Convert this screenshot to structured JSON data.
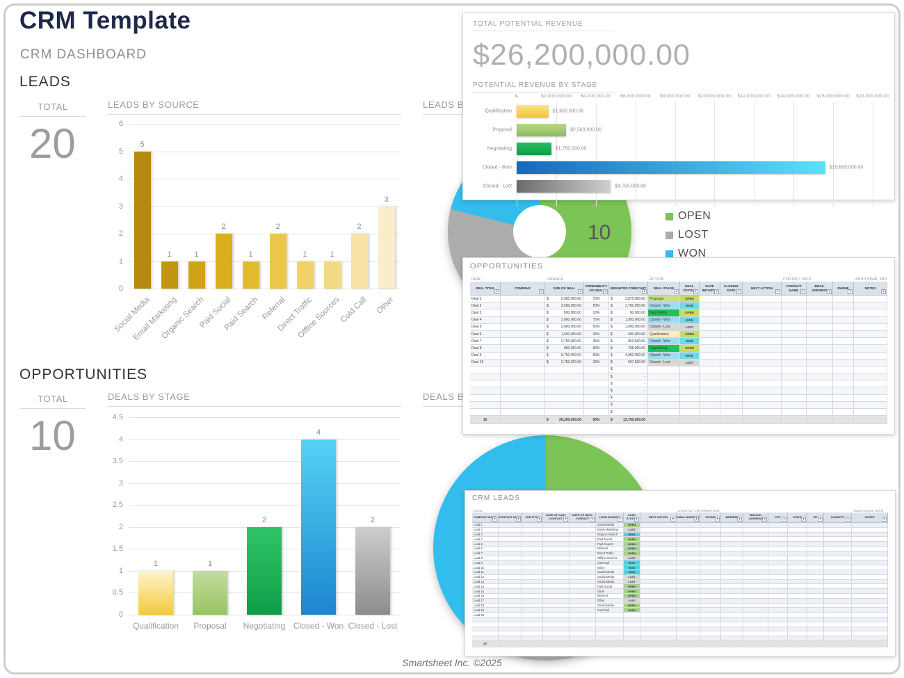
{
  "page": {
    "title": "CRM Template",
    "subtitle": "CRM DASHBOARD",
    "footer": "Smartsheet Inc. ©2025"
  },
  "leads_section": {
    "heading": "LEADS",
    "total_label": "TOTAL",
    "total_value": "20"
  },
  "opps_section": {
    "heading": "OPPORTUNITIES",
    "total_label": "TOTAL",
    "total_value": "10"
  },
  "revenue_panel": {
    "title": "TOTAL POTENTIAL REVENUE",
    "amount": "$26,200,000.00"
  },
  "legend": {
    "items": [
      {
        "label": "OPEN",
        "color": "#7CC455"
      },
      {
        "label": "LOST",
        "color": "#ACACAC"
      },
      {
        "label": "WON",
        "color": "#33BDEC"
      }
    ]
  },
  "chart_data": [
    {
      "id": "leads_by_source",
      "type": "bar",
      "title": "LEADS BY SOURCE",
      "categories": [
        "Social Media",
        "Email Marketing",
        "Organic Search",
        "Paid Social",
        "Paid Search",
        "Referral",
        "Direct Traffic",
        "Offline Sources",
        "Cold Call",
        "Other"
      ],
      "values": [
        5,
        1,
        1,
        2,
        1,
        2,
        1,
        1,
        2,
        3
      ],
      "value_labels": [
        "5",
        "1",
        "1",
        "2",
        "1",
        "2",
        "1",
        "1",
        "2",
        "3"
      ],
      "ylim": [
        0,
        6
      ],
      "yticks": [
        0,
        1,
        2,
        3,
        4,
        5,
        6
      ],
      "bar_colors": [
        "#B5890D",
        "#C2960F",
        "#CEA315",
        "#DAAF1E",
        "#E4BB30",
        "#EBC64B",
        "#F0D068",
        "#F4DA86",
        "#F7E3A6",
        "#FAEDC9"
      ]
    },
    {
      "id": "potential_revenue_by_stage",
      "type": "hbar",
      "title": "POTENTIAL REVENUE BY STAGE",
      "categories": [
        "Qualification",
        "Proposal",
        "Negotiating",
        "Closed - Won",
        "Closed - Lost"
      ],
      "values": [
        1600000,
        2500000,
        1750000,
        15600000,
        4750000
      ],
      "value_labels": [
        "$1,600,000.00",
        "$2,500,000.00",
        "$1,750,000.00",
        "$15,600,000.00",
        "$4,750,000.00"
      ],
      "xlim": [
        0,
        18000000
      ],
      "xticks": [
        "$-",
        "$2,000,000.00",
        "$4,000,000.00",
        "$6,000,000.00",
        "$8,000,000.00",
        "$10,000,000.00",
        "$12,000,000.00",
        "$14,000,000.00",
        "$16,000,000.00",
        "$18,000,000.00"
      ],
      "bar_gradients": [
        [
          "#FBE48E",
          "#F2C235"
        ],
        [
          "#B7D78B",
          "#8FBC58"
        ],
        [
          "#27BD5F",
          "#0E9E47"
        ],
        [
          "#1668BE",
          "#59E2F9"
        ],
        [
          "#6B6B6B",
          "#D0D0D0"
        ]
      ],
      "gradient_dirs": [
        "to bottom",
        "to bottom",
        "to bottom",
        "to right",
        "to right"
      ]
    },
    {
      "id": "leads_by_status",
      "type": "donut",
      "title": "LEADS BY STATUS",
      "labels": [
        "OPEN",
        "LOST",
        "WON"
      ],
      "values": [
        10,
        5,
        4
      ],
      "colors": [
        "#7CC455",
        "#ACACAC",
        "#33BDEC"
      ],
      "data_label": "10",
      "legend_position": "right"
    },
    {
      "id": "deals_by_stage",
      "type": "bar",
      "title": "DEALS BY STAGE",
      "categories": [
        "Qualification",
        "Proposal",
        "Negotiating",
        "Closed - Won",
        "Closed - Lost"
      ],
      "values": [
        1,
        1,
        2,
        4,
        2
      ],
      "value_labels": [
        "1",
        "1",
        "2",
        "4",
        "2"
      ],
      "ylim": [
        0,
        4.5
      ],
      "yticks": [
        0,
        0.5,
        1,
        1.5,
        2,
        2.5,
        3,
        3.5,
        4,
        4.5
      ],
      "bar_gradients": [
        [
          "#FEF4CE",
          "#F3CA3B"
        ],
        [
          "#C3DC9B",
          "#98C464"
        ],
        [
          "#2FC568",
          "#119D48"
        ],
        [
          "#55D2F4",
          "#1C86CF"
        ],
        [
          "#CDCDCD",
          "#8D8D8D"
        ]
      ]
    },
    {
      "id": "deals_by_status",
      "type": "pie",
      "title": "DEALS BY STATUS",
      "labels": [
        "OPEN",
        "LOST",
        "WON"
      ],
      "values": [
        4,
        2,
        4
      ],
      "colors": [
        "#7CC455",
        "#ACACAC",
        "#33BDEC"
      ]
    }
  ],
  "opportunities_table": {
    "title": "OPPORTUNITIES",
    "groups": [
      {
        "label": "DEAL",
        "cols": 2
      },
      {
        "label": "FINANCE",
        "cols": 3
      },
      {
        "label": "ACTION",
        "cols": 5
      },
      {
        "label": "CONTACT INFO",
        "cols": 3
      },
      {
        "label": "ADDITIONAL INFO",
        "cols": 1
      }
    ],
    "columns": [
      "DEAL TITLE",
      "COMPANY",
      "SIZE OF DEAL",
      "PROBABILITY OF DEAL",
      "WEIGHTED FORECAST",
      "DEAL STAGE",
      "DEAL STATUS",
      "DATE INITIATED",
      "CLOSING DATE",
      "NEXT ACTION",
      "CONTACT NAME",
      "EMAIL ADDRESS",
      "PHONE",
      "NOTES"
    ],
    "rows": [
      {
        "deal_title": "Deal 1",
        "size": "2,500,000.00",
        "prob": "75%",
        "forecast": "1,875,000.00",
        "stage": "Proposal",
        "status": "OPEN"
      },
      {
        "deal_title": "Deal 2",
        "size": "3,500,000.00",
        "prob": "50%",
        "forecast": "1,750,000.00",
        "stage": "Closed - Won",
        "status": "WON"
      },
      {
        "deal_title": "Deal 3",
        "size": "900,000.00",
        "prob": "10%",
        "forecast": "90,000.00",
        "stage": "Negotiating",
        "status": "OPEN"
      },
      {
        "deal_title": "Deal 4",
        "size": "2,600,000.00",
        "prob": "75%",
        "forecast": "1,950,000.00",
        "stage": "Closed - Won",
        "status": "WON"
      },
      {
        "deal_title": "Deal 5",
        "size": "2,000,000.00",
        "prob": "50%",
        "forecast": "1,000,000.00",
        "stage": "Closed - Lost",
        "status": "LOST"
      },
      {
        "deal_title": "Deal 6",
        "size": "1,600,000.00",
        "prob": "25%",
        "forecast": "400,000.00",
        "stage": "Qualification",
        "status": "OPEN"
      },
      {
        "deal_title": "Deal 7",
        "size": "2,750,000.00",
        "prob": "35%",
        "forecast": "962,500.00",
        "stage": "Closed - Won",
        "status": "WON"
      },
      {
        "deal_title": "Deal 8",
        "size": "850,000.00",
        "prob": "90%",
        "forecast": "765,000.00",
        "stage": "Negotiating",
        "status": "OPEN"
      },
      {
        "deal_title": "Deal 9",
        "size": "6,750,000.00",
        "prob": "60%",
        "forecast": "4,050,000.00",
        "stage": "Closed - Won",
        "status": "WON"
      },
      {
        "deal_title": "Deal 10",
        "size": "2,750,000.00",
        "prob": "33%",
        "forecast": "907,500.00",
        "stage": "Closed - Lost",
        "status": "LOST"
      }
    ],
    "empty_rows": 7,
    "totals": {
      "count": "10",
      "size": "26,200,000.00",
      "prob": "50%",
      "forecast": "13,750,000.00"
    },
    "stage_fill": {
      "Qualification": "#FBEDC4",
      "Proposal": "#C9DE8F",
      "Negotiating": "#1FC15C",
      "Closed - Won": "#9FDCEE",
      "Closed - Lost": "#D8D8D8"
    },
    "status_fill": {
      "OPEN": "#C6DB6A",
      "WON": "#6ED9E9",
      "LOST": "#D8D8D8"
    }
  },
  "crm_leads_table": {
    "title": "CRM LEADS",
    "groups": [
      {
        "label": "LEAD",
        "cols": 8
      },
      {
        "label": "CONTACT INFORMATION",
        "cols": 8
      },
      {
        "label": "ADDITIONAL INFO",
        "cols": 1
      }
    ],
    "columns": [
      "COMPANY NAME",
      "CONTACT NAME",
      "JOB TITLE",
      "DATE OF LAST CONTACT",
      "DATE OF NEXT CONTACT",
      "LEAD SOURCE",
      "LEAD STATUS",
      "NEXT ACTION",
      "EMAIL ADDRESS",
      "PHONE",
      "WEBSITE",
      "MAILING ADDRESS",
      "CITY",
      "STATE",
      "ZIP",
      "COUNTRY",
      "NOTES"
    ],
    "rows": [
      {
        "name": "Lead 1",
        "source": "Social Media",
        "status": "OPEN"
      },
      {
        "name": "Lead 2",
        "source": "Email Marketing",
        "status": "LOST"
      },
      {
        "name": "Lead 3",
        "source": "Organic Search",
        "status": "WON"
      },
      {
        "name": "Lead 4",
        "source": "Paid Social",
        "status": "OPEN"
      },
      {
        "name": "Lead 5",
        "source": "Paid Search",
        "status": "OPEN"
      },
      {
        "name": "Lead 6",
        "source": "Referral",
        "status": "OPEN"
      },
      {
        "name": "Lead 7",
        "source": "Direct Traffic",
        "status": "OPEN"
      },
      {
        "name": "Lead 8",
        "source": "Offline Sources",
        "status": "LOST"
      },
      {
        "name": "Lead 9",
        "source": "Cold Call",
        "status": "WON"
      },
      {
        "name": "Lead 10",
        "source": "Other",
        "status": "WON"
      },
      {
        "name": "Lead 11",
        "source": "Social Media",
        "status": "WON"
      },
      {
        "name": "Lead 12",
        "source": "Social Media",
        "status": "LOST"
      },
      {
        "name": "Lead 13",
        "source": "Social Media",
        "status": "LOST"
      },
      {
        "name": "Lead 14",
        "source": "Paid Social",
        "status": "OPEN"
      },
      {
        "name": "Lead 15",
        "source": "Other",
        "status": "OPEN"
      },
      {
        "name": "Lead 16",
        "source": "Referral",
        "status": "OPEN"
      },
      {
        "name": "Lead 17",
        "source": "Other",
        "status": "LOST"
      },
      {
        "name": "Lead 18",
        "source": "Social Media",
        "status": "OPEN"
      },
      {
        "name": "Lead 19",
        "source": "Cold Call",
        "status": "OPEN"
      },
      {
        "name": "Lead 20",
        "source": "",
        "status": ""
      }
    ],
    "empty_rows": 5,
    "total": "20",
    "status_fill": {
      "OPEN": "#A9D18E",
      "WON": "#4FD1E2",
      "LOST": "#D8D8D8"
    }
  }
}
